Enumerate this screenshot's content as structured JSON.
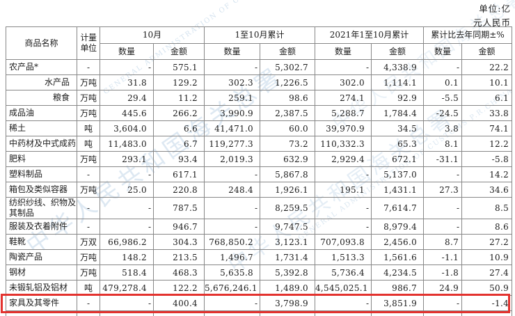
{
  "unit_note": {
    "line1": "单位:亿",
    "line2": "元人民币"
  },
  "watermark": {
    "text_cn": "中华人民共和国海关总署",
    "text_en": "GENERAL ADMINISTRATION OF CUSTOMS P.R.CHINA",
    "color": "#96b9d7"
  },
  "highlight": {
    "color": "#e3322e",
    "row_name": "家具及其零件"
  },
  "table": {
    "headers": {
      "commodity": "商品名称",
      "unit": "计量单位",
      "groups": [
        {
          "label": "10月"
        },
        {
          "label": "1至10月累计"
        },
        {
          "label": "2021年1至10月累计"
        },
        {
          "label": "累计比去年同期±%"
        }
      ],
      "sub_qty": "数量",
      "sub_amt": "金额"
    },
    "rows": [
      {
        "name": "农产品*",
        "indent": false,
        "highlight": false,
        "unit": "-",
        "values": [
          "-",
          "575.1",
          "-",
          "5,302.7",
          "-",
          "4,338.9",
          "-",
          "22.2"
        ]
      },
      {
        "name": "水产品",
        "indent": true,
        "highlight": false,
        "unit": "万吨",
        "values": [
          "31.8",
          "129.2",
          "302.3",
          "1,226.5",
          "302.0",
          "1,114.1",
          "0.1",
          "10.1"
        ]
      },
      {
        "name": "粮食",
        "indent": true,
        "highlight": false,
        "unit": "万吨",
        "values": [
          "29.4",
          "11.2",
          "259.1",
          "98.6",
          "274.1",
          "92.9",
          "-5.5",
          "6.1"
        ]
      },
      {
        "name": "成品油",
        "indent": false,
        "highlight": false,
        "unit": "万吨",
        "values": [
          "445.6",
          "266.2",
          "3,990.9",
          "2,387.5",
          "5,288.7",
          "1,784.4",
          "-24.5",
          "33.8"
        ]
      },
      {
        "name": "稀土",
        "indent": false,
        "highlight": false,
        "unit": "吨",
        "values": [
          "3,604.0",
          "6.6",
          "41,471.0",
          "60.0",
          "39,970.9",
          "34.5",
          "3.8",
          "74.1"
        ]
      },
      {
        "name": "中药材及中式成药",
        "indent": false,
        "highlight": false,
        "unit": "吨",
        "values": [
          "11,483.0",
          "6.7",
          "119,277.3",
          "73.2",
          "110,332.3",
          "65.3",
          "8.1",
          "12.2"
        ]
      },
      {
        "name": "肥料",
        "indent": false,
        "highlight": false,
        "unit": "万吨",
        "values": [
          "293.1",
          "93.4",
          "2,019.3",
          "632.9",
          "2,929.4",
          "672.1",
          "-31.1",
          "-5.8"
        ]
      },
      {
        "name": "塑料制品",
        "indent": false,
        "highlight": false,
        "unit": "-",
        "values": [
          "-",
          "617.1",
          "-",
          "5,867.8",
          "-",
          "5,137.0",
          "-",
          "14.2"
        ]
      },
      {
        "name": "箱包及类似容器",
        "indent": false,
        "highlight": false,
        "unit": "万吨",
        "values": [
          "25.0",
          "220.8",
          "248.4",
          "1,926.1",
          "195.1",
          "1,431.1",
          "27.3",
          "34.6"
        ]
      },
      {
        "name": "纺织纱线、织物及其制品",
        "indent": false,
        "highlight": false,
        "unit": "-",
        "values": [
          "-",
          "787.5",
          "-",
          "8,259.5",
          "-",
          "7,614.7",
          "-",
          "8.5"
        ]
      },
      {
        "name": "服装及衣着附件",
        "indent": false,
        "highlight": false,
        "unit": "-",
        "values": [
          "-",
          "946.7",
          "-",
          "9,747.5",
          "-",
          "8,979.4",
          "-",
          "8.6"
        ]
      },
      {
        "name": "鞋靴",
        "indent": false,
        "highlight": false,
        "unit": "万双",
        "values": [
          "66,986.2",
          "304.3",
          "768,850.2",
          "3,123.1",
          "707,093.8",
          "2,456.0",
          "8.7",
          "27.2"
        ]
      },
      {
        "name": "陶瓷产品",
        "indent": false,
        "highlight": false,
        "unit": "万吨",
        "values": [
          "148.2",
          "213.5",
          "1,496.7",
          "1,731.4",
          "1,513.3",
          "1,561.6",
          "-1.1",
          "10.9"
        ]
      },
      {
        "name": "钢材",
        "indent": false,
        "highlight": false,
        "unit": "万吨",
        "values": [
          "518.4",
          "468.3",
          "5,635.8",
          "5,392.8",
          "5,736.4",
          "4,234.5",
          "-1.8",
          "27.4"
        ]
      },
      {
        "name": "未锻轧铝及铝材",
        "indent": false,
        "highlight": false,
        "unit": "吨",
        "values": [
          "479,278.4",
          "122.2",
          "5,676,246.1",
          "1,489.0",
          "4,545,025.1",
          "986.7",
          "24.9",
          "50.9"
        ]
      },
      {
        "name": "家具及其零件",
        "indent": false,
        "highlight": true,
        "unit": "-",
        "values": [
          "-",
          "400.4",
          "-",
          "3,798.9",
          "-",
          "3,851.9",
          "-",
          "-1.4"
        ]
      }
    ]
  }
}
